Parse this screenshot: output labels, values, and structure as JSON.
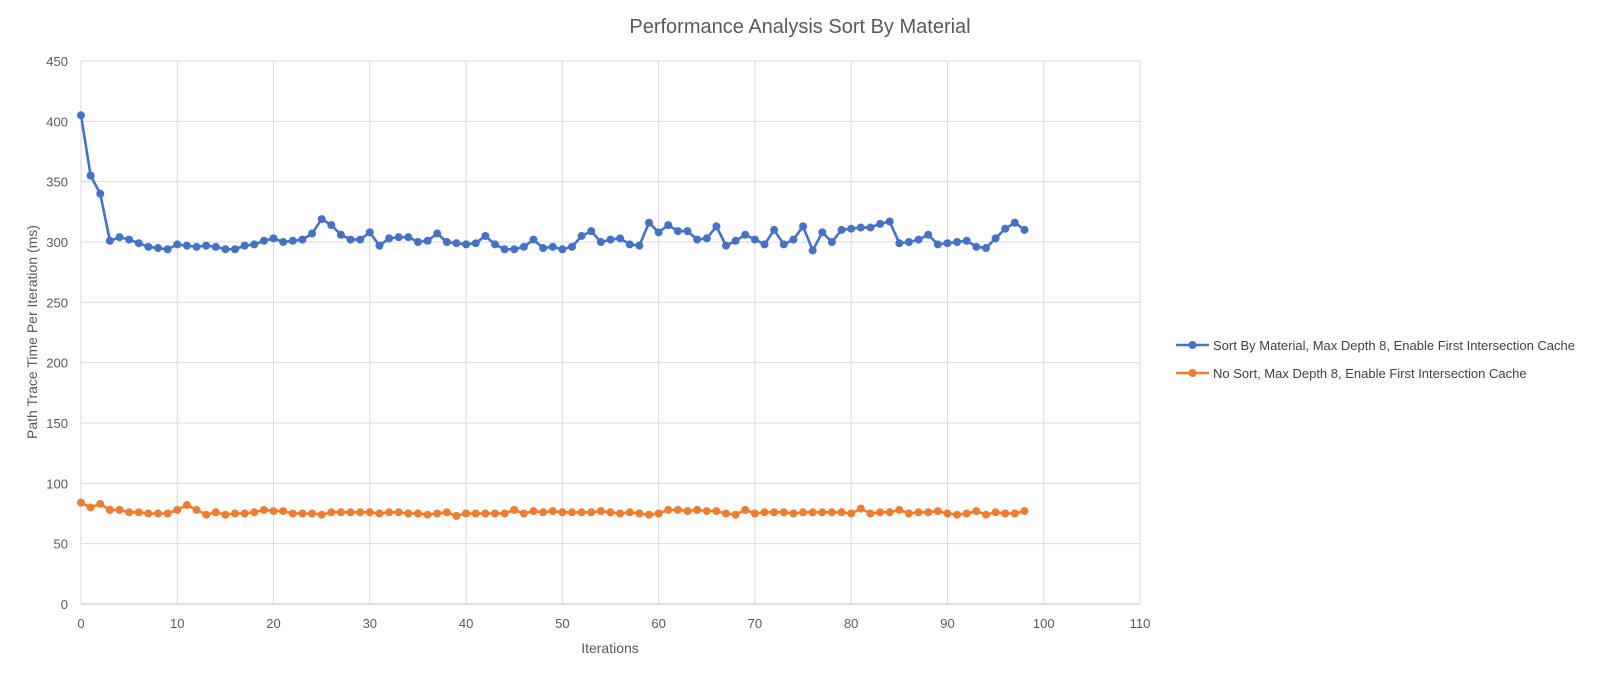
{
  "chart_data": {
    "type": "line",
    "title": "Performance Analysis Sort By Material",
    "xlabel": "Iterations",
    "ylabel": "Path Trace Time Per Iteration (ms)",
    "xlim": [
      0,
      110
    ],
    "ylim": [
      0,
      450
    ],
    "xticks": [
      0,
      10,
      20,
      30,
      40,
      50,
      60,
      70,
      80,
      90,
      100,
      110
    ],
    "yticks": [
      0,
      50,
      100,
      150,
      200,
      250,
      300,
      350,
      400,
      450
    ],
    "grid": true,
    "legend_position": "right",
    "series": [
      {
        "name": "Sort By Material, Max Depth 8, Enable First Intersection Cache",
        "color": "#4472C4",
        "x": [
          0,
          1,
          2,
          3,
          4,
          5,
          6,
          7,
          8,
          9,
          10,
          11,
          12,
          13,
          14,
          15,
          16,
          17,
          18,
          19,
          20,
          21,
          22,
          23,
          24,
          25,
          26,
          27,
          28,
          29,
          30,
          31,
          32,
          33,
          34,
          35,
          36,
          37,
          38,
          39,
          40,
          41,
          42,
          43,
          44,
          45,
          46,
          47,
          48,
          49,
          50,
          51,
          52,
          53,
          54,
          55,
          56,
          57,
          58,
          59,
          60,
          61,
          62,
          63,
          64,
          65,
          66,
          67,
          68,
          69,
          70,
          71,
          72,
          73,
          74,
          75,
          76,
          77,
          78,
          79,
          80,
          81,
          82,
          83,
          84,
          85,
          86,
          87,
          88,
          89,
          90,
          91,
          92,
          93,
          94,
          95,
          96,
          97,
          98
        ],
        "values": [
          405,
          355,
          340,
          301,
          304,
          302,
          299,
          296,
          295,
          294,
          298,
          297,
          296,
          297,
          296,
          294,
          294,
          297,
          298,
          301,
          303,
          300,
          301,
          302,
          307,
          319,
          314,
          306,
          302,
          302,
          308,
          297,
          303,
          304,
          304,
          300,
          301,
          307,
          300,
          299,
          298,
          299,
          305,
          298,
          294,
          294,
          296,
          302,
          295,
          296,
          294,
          296,
          305,
          309,
          300,
          302,
          303,
          298,
          297,
          316,
          308,
          314,
          309,
          309,
          302,
          303,
          313,
          297,
          301,
          306,
          302,
          298,
          310,
          298,
          302,
          313,
          293,
          308,
          300,
          310,
          311,
          312,
          312,
          315,
          317,
          299,
          300,
          302,
          306,
          298,
          299,
          300,
          301,
          296,
          295,
          303,
          311,
          316,
          310
        ]
      },
      {
        "name": "No Sort, Max Depth 8, Enable First Intersection Cache",
        "color": "#ED7D31",
        "x": [
          0,
          1,
          2,
          3,
          4,
          5,
          6,
          7,
          8,
          9,
          10,
          11,
          12,
          13,
          14,
          15,
          16,
          17,
          18,
          19,
          20,
          21,
          22,
          23,
          24,
          25,
          26,
          27,
          28,
          29,
          30,
          31,
          32,
          33,
          34,
          35,
          36,
          37,
          38,
          39,
          40,
          41,
          42,
          43,
          44,
          45,
          46,
          47,
          48,
          49,
          50,
          51,
          52,
          53,
          54,
          55,
          56,
          57,
          58,
          59,
          60,
          61,
          62,
          63,
          64,
          65,
          66,
          67,
          68,
          69,
          70,
          71,
          72,
          73,
          74,
          75,
          76,
          77,
          78,
          79,
          80,
          81,
          82,
          83,
          84,
          85,
          86,
          87,
          88,
          89,
          90,
          91,
          92,
          93,
          94,
          95,
          96,
          97,
          98
        ],
        "values": [
          84,
          80,
          83,
          78,
          78,
          76,
          76,
          75,
          75,
          75,
          78,
          82,
          78,
          74,
          76,
          74,
          75,
          75,
          76,
          78,
          77,
          77,
          75,
          75,
          75,
          74,
          76,
          76,
          76,
          76,
          76,
          75,
          76,
          76,
          75,
          75,
          74,
          75,
          76,
          73,
          75,
          75,
          75,
          75,
          75,
          78,
          75,
          77,
          76,
          77,
          76,
          76,
          76,
          76,
          77,
          76,
          75,
          76,
          75,
          74,
          75,
          78,
          78,
          77,
          78,
          77,
          77,
          75,
          74,
          78,
          75,
          76,
          76,
          76,
          75,
          76,
          76,
          76,
          76,
          76,
          75,
          79,
          75,
          76,
          76,
          78,
          75,
          76,
          76,
          77,
          75,
          74,
          75,
          77,
          74,
          76,
          75,
          75,
          77
        ]
      }
    ]
  }
}
